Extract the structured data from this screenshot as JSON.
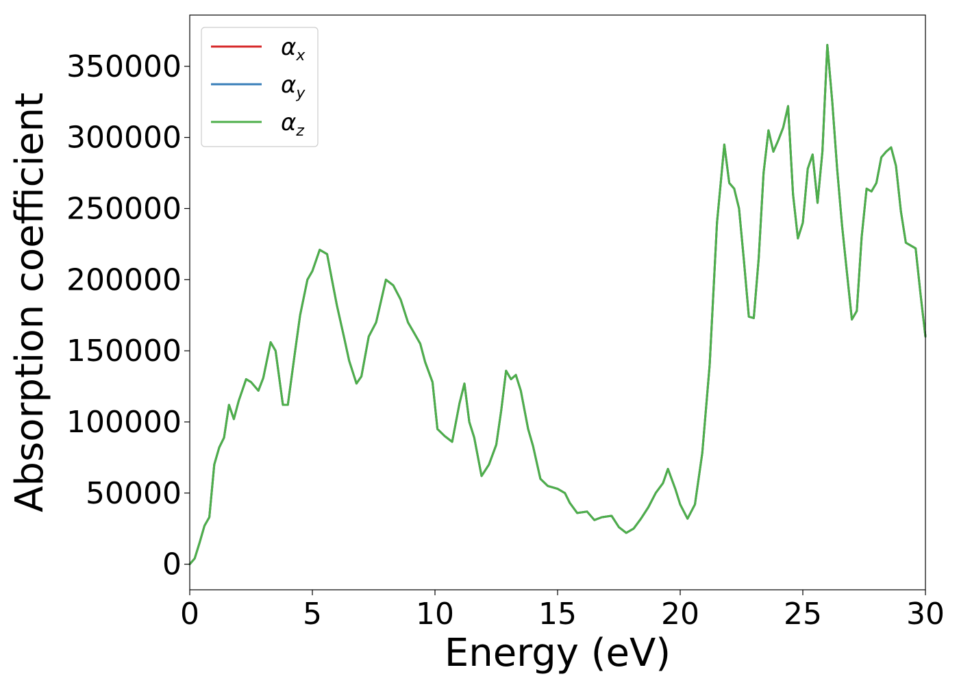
{
  "chart_data": {
    "type": "line",
    "xlabel": "Energy (eV)",
    "ylabel": "Absorption coefficient",
    "xlim": [
      0,
      30
    ],
    "ylim": [
      -18000,
      386000
    ],
    "xticks": [
      "0",
      "5",
      "10",
      "15",
      "20",
      "25",
      "30"
    ],
    "yticks": [
      "0",
      "50000",
      "100000",
      "150000",
      "200000",
      "250000",
      "300000",
      "350000"
    ],
    "grid": false,
    "legend_position": "top-left",
    "x": [
      0,
      0.2,
      0.4,
      0.6,
      0.8,
      1.0,
      1.2,
      1.4,
      1.6,
      1.8,
      2.0,
      2.3,
      2.5,
      2.8,
      3.0,
      3.3,
      3.5,
      3.8,
      4.0,
      4.3,
      4.5,
      4.8,
      5.0,
      5.3,
      5.6,
      5.8,
      6.0,
      6.3,
      6.5,
      6.8,
      7.0,
      7.3,
      7.6,
      8.0,
      8.3,
      8.6,
      8.9,
      9.1,
      9.4,
      9.6,
      9.9,
      10.1,
      10.4,
      10.7,
      11.0,
      11.2,
      11.4,
      11.6,
      11.9,
      12.2,
      12.5,
      12.7,
      12.9,
      13.1,
      13.3,
      13.5,
      13.8,
      14.0,
      14.3,
      14.6,
      15.0,
      15.3,
      15.5,
      15.8,
      16.2,
      16.5,
      16.8,
      17.2,
      17.5,
      17.8,
      18.1,
      18.4,
      18.7,
      19.0,
      19.3,
      19.5,
      19.8,
      20.0,
      20.3,
      20.6,
      20.9,
      21.2,
      21.5,
      21.8,
      22.0,
      22.2,
      22.4,
      22.6,
      22.8,
      23.0,
      23.2,
      23.4,
      23.6,
      23.8,
      24.0,
      24.2,
      24.4,
      24.6,
      24.8,
      25.0,
      25.2,
      25.4,
      25.6,
      25.8,
      26.0,
      26.2,
      26.4,
      26.6,
      26.8,
      27.0,
      27.2,
      27.4,
      27.6,
      27.8,
      28.0,
      28.2,
      28.4,
      28.6,
      28.8,
      29.0,
      29.2,
      29.4,
      29.6,
      29.8,
      30.0
    ],
    "series": [
      {
        "name": "α_x",
        "symbol": "α",
        "subscript": "x",
        "color": "#d62728",
        "y": [
          0,
          4000,
          15000,
          27000,
          33000,
          70000,
          82000,
          89000,
          112000,
          102000,
          115000,
          130000,
          128000,
          122000,
          131000,
          156000,
          150000,
          112000,
          112000,
          150000,
          175000,
          200000,
          206000,
          221000,
          218000,
          200000,
          182000,
          159000,
          143000,
          127000,
          132000,
          160000,
          170000,
          200000,
          196000,
          186000,
          170000,
          164000,
          155000,
          142000,
          128000,
          95000,
          90000,
          86000,
          113000,
          127000,
          100000,
          89000,
          62000,
          70000,
          84000,
          108000,
          136000,
          130000,
          133000,
          122000,
          95000,
          83000,
          60000,
          55000,
          53000,
          50000,
          43000,
          36000,
          37000,
          31000,
          33000,
          34000,
          26000,
          22000,
          25000,
          32000,
          40000,
          50000,
          57000,
          67000,
          53000,
          42000,
          32000,
          42000,
          78000,
          140000,
          240000,
          295000,
          268000,
          264000,
          250000,
          213000,
          174000,
          173000,
          215000,
          275000,
          305000,
          290000,
          298000,
          307000,
          322000,
          260000,
          229000,
          240000,
          278000,
          288000,
          254000,
          290000,
          365000,
          325000,
          278000,
          238000,
          205000,
          172000,
          178000,
          230000,
          264000,
          262000,
          268000,
          286000,
          290000,
          293000,
          280000,
          248000,
          226000,
          224000,
          222000,
          190000,
          160000
        ]
      },
      {
        "name": "α_y",
        "symbol": "α",
        "subscript": "y",
        "color": "#377eb8",
        "y": [
          0,
          4000,
          15000,
          27000,
          33000,
          70000,
          82000,
          89000,
          112000,
          102000,
          115000,
          130000,
          128000,
          122000,
          131000,
          156000,
          150000,
          112000,
          112000,
          150000,
          175000,
          200000,
          206000,
          221000,
          218000,
          200000,
          182000,
          159000,
          143000,
          127000,
          132000,
          160000,
          170000,
          200000,
          196000,
          186000,
          170000,
          164000,
          155000,
          142000,
          128000,
          95000,
          90000,
          86000,
          113000,
          127000,
          100000,
          89000,
          62000,
          70000,
          84000,
          108000,
          136000,
          130000,
          133000,
          122000,
          95000,
          83000,
          60000,
          55000,
          53000,
          50000,
          43000,
          36000,
          37000,
          31000,
          33000,
          34000,
          26000,
          22000,
          25000,
          32000,
          40000,
          50000,
          57000,
          67000,
          53000,
          42000,
          32000,
          42000,
          78000,
          140000,
          240000,
          295000,
          268000,
          264000,
          250000,
          213000,
          174000,
          173000,
          215000,
          275000,
          305000,
          290000,
          298000,
          307000,
          322000,
          260000,
          229000,
          240000,
          278000,
          288000,
          254000,
          290000,
          365000,
          325000,
          278000,
          238000,
          205000,
          172000,
          178000,
          230000,
          264000,
          262000,
          268000,
          286000,
          290000,
          293000,
          280000,
          248000,
          226000,
          224000,
          222000,
          190000,
          160000
        ]
      },
      {
        "name": "α_z",
        "symbol": "α",
        "subscript": "z",
        "color": "#4daf4a",
        "y": [
          0,
          4000,
          15000,
          27000,
          33000,
          70000,
          82000,
          89000,
          112000,
          102000,
          115000,
          130000,
          128000,
          122000,
          131000,
          156000,
          150000,
          112000,
          112000,
          150000,
          175000,
          200000,
          206000,
          221000,
          218000,
          200000,
          182000,
          159000,
          143000,
          127000,
          132000,
          160000,
          170000,
          200000,
          196000,
          186000,
          170000,
          164000,
          155000,
          142000,
          128000,
          95000,
          90000,
          86000,
          113000,
          127000,
          100000,
          89000,
          62000,
          70000,
          84000,
          108000,
          136000,
          130000,
          133000,
          122000,
          95000,
          83000,
          60000,
          55000,
          53000,
          50000,
          43000,
          36000,
          37000,
          31000,
          33000,
          34000,
          26000,
          22000,
          25000,
          32000,
          40000,
          50000,
          57000,
          67000,
          53000,
          42000,
          32000,
          42000,
          78000,
          140000,
          240000,
          295000,
          268000,
          264000,
          250000,
          213000,
          174000,
          173000,
          215000,
          275000,
          305000,
          290000,
          298000,
          307000,
          322000,
          260000,
          229000,
          240000,
          278000,
          288000,
          254000,
          290000,
          365000,
          325000,
          278000,
          238000,
          205000,
          172000,
          178000,
          230000,
          264000,
          262000,
          268000,
          286000,
          290000,
          293000,
          280000,
          248000,
          226000,
          224000,
          222000,
          190000,
          160000
        ]
      }
    ]
  }
}
